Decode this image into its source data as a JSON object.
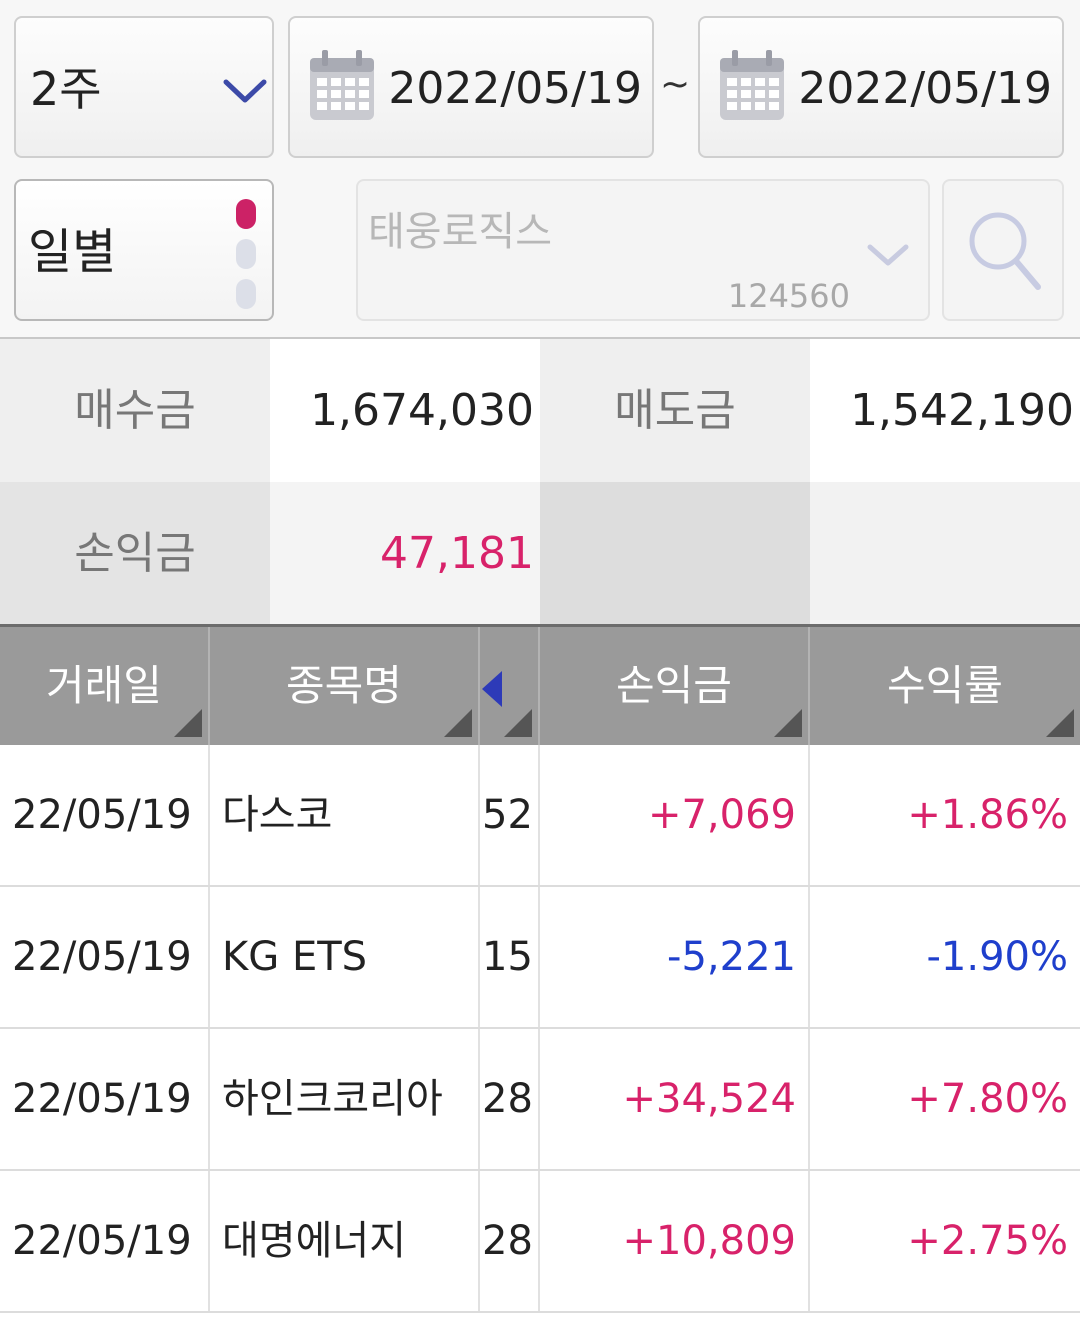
{
  "filters": {
    "period": "2주",
    "start_date": "2022/05/19",
    "range_separator": "~",
    "end_date": "2022/05/19",
    "mode": "일별",
    "stock_name": "태웅로직스",
    "stock_code": "124560"
  },
  "summary": {
    "buy_label": "매수금",
    "buy_value": "1,674,030",
    "sell_label": "매도금",
    "sell_value": "1,542,190",
    "profit_label": "손익금",
    "profit_value": "47,181"
  },
  "table": {
    "headers": [
      "거래일",
      "종목명",
      "",
      "손익금",
      "수익률"
    ],
    "rows": [
      {
        "date": "22/05/19",
        "name": "다스코",
        "qty": "52",
        "profit": "+7,069",
        "rate": "+1.86%",
        "sign": "pos"
      },
      {
        "date": "22/05/19",
        "name": "KG ETS",
        "qty": "15",
        "profit": "-5,221",
        "rate": "-1.90%",
        "sign": "neg"
      },
      {
        "date": "22/05/19",
        "name": "하인크코리아",
        "qty": "28",
        "profit": "+34,524",
        "rate": "+7.80%",
        "sign": "pos"
      },
      {
        "date": "22/05/19",
        "name": "대명에너지",
        "qty": "28",
        "profit": "+10,809",
        "rate": "+2.75%",
        "sign": "pos"
      }
    ]
  },
  "colors": {
    "positive": "#d8226a",
    "negative": "#1f3fcc",
    "active_dot": "#cc2266",
    "header_bg": "#9a9a9a"
  },
  "icons": [
    "chevron-down-icon",
    "calendar-icon",
    "search-icon",
    "sort-corner-icon",
    "scroll-left-arrow-icon"
  ]
}
